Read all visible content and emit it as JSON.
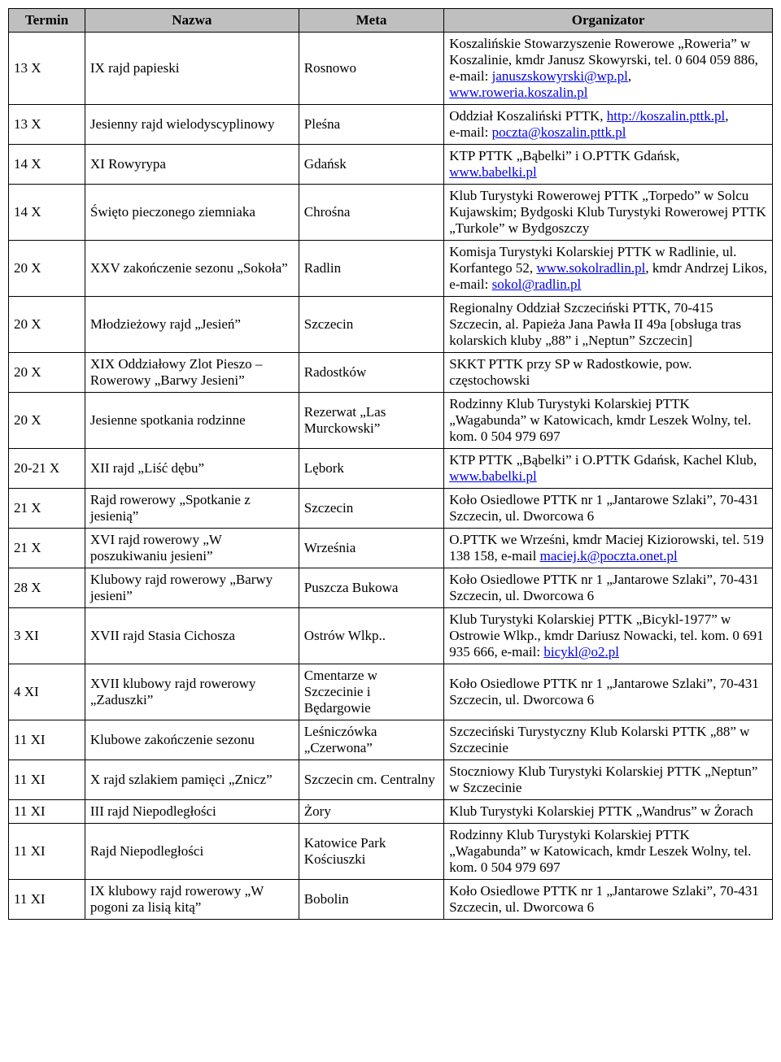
{
  "columns": [
    "Termin",
    "Nazwa",
    "Meta",
    "Organizator"
  ],
  "header_bg": "#bfbfbf",
  "link_color": "#0000ee",
  "rows": [
    {
      "termin": "13 X",
      "nazwa": "IX rajd papieski",
      "meta": "Rosnowo",
      "organizer": [
        {
          "t": "Koszalińskie Stowarzyszenie Rowerowe „Roweria” w Koszalinie, kmdr Janusz Skowyrski, tel. 0 604 059 886, e‑mail: ",
          "l": false
        },
        {
          "t": "januszskowyrski@wp.pl",
          "l": true
        },
        {
          "t": ", ",
          "l": false
        },
        {
          "t": "www.roweria.koszalin.pl",
          "l": true
        }
      ]
    },
    {
      "termin": "13 X",
      "nazwa": "Jesienny rajd wielodyscyplinowy",
      "meta": "Pleśna",
      "organizer": [
        {
          "t": "Oddział Koszaliński PTTK, ",
          "l": false
        },
        {
          "t": "http://koszalin.pttk.pl",
          "l": true
        },
        {
          "t": ", e‑mail: ",
          "l": false
        },
        {
          "t": "poczta@koszalin.pttk.pl",
          "l": true
        }
      ]
    },
    {
      "termin": "14 X",
      "nazwa": "XI Rowyrypa",
      "meta": "Gdańsk",
      "organizer": [
        {
          "t": "KTP PTTK „Bąbelki” i O.PTTK Gdańsk, ",
          "l": false
        },
        {
          "t": "www.babelki.pl",
          "l": true
        }
      ]
    },
    {
      "termin": "14 X",
      "nazwa": "Święto pieczonego ziemniaka",
      "meta": "Chrośna",
      "organizer": [
        {
          "t": "Klub Turystyki Rowerowej PTTK „Torpedo” w Solcu Kujawskim; Bydgoski Klub Turystyki Rowerowej PTTK „Turkole” w Bydgoszczy",
          "l": false
        }
      ]
    },
    {
      "termin": "20 X",
      "nazwa": "XXV zakończenie sezonu „Sokoła”",
      "meta": "Radlin",
      "organizer": [
        {
          "t": "Komisja Turystyki Kolarskiej PTTK w Radlinie, ul. Korfantego 52, ",
          "l": false
        },
        {
          "t": "www.sokolradlin.pl",
          "l": true
        },
        {
          "t": ", kmdr Andrzej Likos, e‑mail: ",
          "l": false
        },
        {
          "t": "sokol@radlin.pl",
          "l": true
        }
      ]
    },
    {
      "termin": "20 X",
      "nazwa": "Młodzieżowy rajd „Jesień”",
      "meta": "Szczecin",
      "organizer": [
        {
          "t": "Regionalny Oddział Szczeciński PTTK, 70‑415 Szczecin, al. Papieża Jana Pawła II 49a [obsługa tras kolarskich kluby „88” i „Neptun” Szczecin]",
          "l": false
        }
      ]
    },
    {
      "termin": "20 X",
      "nazwa": "XIX Oddziałowy Zlot Pieszo – Rowerowy „Barwy Jesieni”",
      "meta": "Radostków",
      "organizer": [
        {
          "t": "SKKT PTTK przy SP w Radostkowie, pow. częstochowski",
          "l": false
        }
      ]
    },
    {
      "termin": "20 X",
      "nazwa": "Jesienne spotkania rodzinne",
      "meta": "Rezerwat „Las Murckowski”",
      "organizer": [
        {
          "t": "Rodzinny Klub Turystyki Kolarskiej PTTK „Wagabunda” w Katowicach, kmdr Leszek Wolny, tel. kom. 0 504 979 697",
          "l": false
        }
      ]
    },
    {
      "termin": "20-21 X",
      "nazwa": "XII rajd „Liść dębu”",
      "meta": "Lębork",
      "organizer": [
        {
          "t": "KTP PTTK „Bąbelki” i O.PTTK Gdańsk, Kachel Klub, ",
          "l": false
        },
        {
          "t": "www.babelki.pl",
          "l": true
        }
      ]
    },
    {
      "termin": "21 X",
      "nazwa": "Rajd rowerowy „Spotkanie z jesienią”",
      "meta": "Szczecin",
      "organizer": [
        {
          "t": "Koło Osiedlowe PTTK nr 1 „Jantarowe Szlaki”, 70‑431 Szczecin, ul. Dworcowa 6",
          "l": false
        }
      ]
    },
    {
      "termin": "21 X",
      "nazwa": "XVI rajd rowerowy „W poszukiwaniu jesieni”",
      "meta": "Września",
      "organizer": [
        {
          "t": "O.PTTK we Wrześni, kmdr Maciej Kiziorowski, tel. 519 138 158, e‑mail ",
          "l": false
        },
        {
          "t": "maciej.k@poczta.onet.pl",
          "l": true
        }
      ]
    },
    {
      "termin": "28 X",
      "nazwa": "Klubowy rajd rowerowy „Barwy jesieni”",
      "meta": "Puszcza Bukowa",
      "organizer": [
        {
          "t": "Koło Osiedlowe PTTK nr 1 „Jantarowe Szlaki”, 70‑431 Szczecin, ul. Dworcowa 6",
          "l": false
        }
      ]
    },
    {
      "termin": "3 XI",
      "nazwa": "XVII rajd Stasia Cichosza",
      "meta": "Ostrów Wlkp..",
      "organizer": [
        {
          "t": "Klub Turystyki Kolarskiej PTTK „Bicykl‑1977” w Ostrowie Wlkp., kmdr Dariusz Nowacki, tel. kom. 0 691 935 666, e‑mail: ",
          "l": false
        },
        {
          "t": "bicykl@o2.pl",
          "l": true
        }
      ]
    },
    {
      "termin": "4 XI",
      "nazwa": "XVII klubowy rajd rowerowy „Zaduszki”",
      "meta": "Cmentarze w Szczecinie i Będargowie",
      "organizer": [
        {
          "t": "Koło Osiedlowe PTTK nr 1 „Jantarowe Szlaki”, 70‑431 Szczecin, ul. Dworcowa 6",
          "l": false
        }
      ]
    },
    {
      "termin": "11 XI",
      "nazwa": "Klubowe zakończenie sezonu",
      "meta": "Leśniczówka „Czerwona”",
      "organizer": [
        {
          "t": "Szczeciński Turystyczny Klub Kolarski PTTK „88” w Szczecinie",
          "l": false
        }
      ]
    },
    {
      "termin": "11 XI",
      "nazwa": "X rajd szlakiem pamięci „Znicz”",
      "meta": "Szczecin cm. Centralny",
      "organizer": [
        {
          "t": "Stoczniowy Klub Turystyki Kolarskiej PTTK „Neptun” w Szczecinie",
          "l": false
        }
      ]
    },
    {
      "termin": "11 XI",
      "nazwa": "III rajd Niepodległości",
      "meta": "Żory",
      "organizer": [
        {
          "t": "Klub Turystyki Kolarskiej PTTK „Wandrus” w Żorach",
          "l": false
        }
      ]
    },
    {
      "termin": "11 XI",
      "nazwa": "Rajd Niepodległości",
      "meta": "Katowice Park Kościuszki",
      "organizer": [
        {
          "t": "Rodzinny Klub Turystyki Kolarskiej PTTK „Wagabunda” w Katowicach, kmdr Leszek Wolny, tel. kom. 0 504 979 697",
          "l": false
        }
      ]
    },
    {
      "termin": "11 XI",
      "nazwa": "IX klubowy rajd rowerowy „W pogoni za lisią kitą”",
      "meta": "Bobolin",
      "organizer": [
        {
          "t": "Koło Osiedlowe PTTK nr 1 „Jantarowe Szlaki”, 70‑431 Szczecin, ul. Dworcowa 6",
          "l": false
        }
      ]
    }
  ]
}
